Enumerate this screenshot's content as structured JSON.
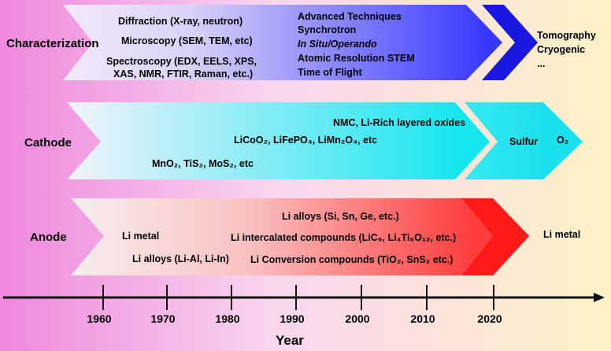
{
  "rows": {
    "characterization": {
      "label": "Characterization",
      "early": [
        "Diffraction (X-ray, neutron)",
        "Microscopy (SEM, TEM, etc)",
        "Spectroscopy (EDX, EELS, XPS,",
        "XAS, NMR, FTIR, Raman, etc.)"
      ],
      "advanced": [
        "Advanced Techniques",
        "Synchrotron",
        "In Situ/Operando",
        "Atomic Resolution STEM",
        "Time of Flight"
      ],
      "future": [
        "Tomography",
        "Cryogenic",
        "..."
      ]
    },
    "cathode": {
      "label": "Cathode",
      "item_1": "MnO₂, TiS₂, MoS₂, etc",
      "item_2": "LiCoO₂, LiFePO₄, LiMn₂O₄, etc",
      "item_3": "NMC, Li-Rich layered oxides",
      "future_1": "Sulfur",
      "future_2": "O₂"
    },
    "anode": {
      "label": "Anode",
      "item_1": "Li metal",
      "item_2": "Li  alloys (Li-Al, Li-In)",
      "item_3": "Li alloys (Si, Sn, Ge, etc.)",
      "item_4": "Li intercalated compounds (LiC₆, Li₄Ti₅O₁₂, etc.)",
      "item_5": "Li Conversion compounds (TiO₂, SnS₂ etc.)",
      "future": "Li metal"
    }
  },
  "axis": {
    "title": "Year",
    "ticks": [
      "1960",
      "1970",
      "1980",
      "1990",
      "2000",
      "2010",
      "2020"
    ]
  },
  "colors": {
    "bg_left": "#ee88dd",
    "bg_right": "#fdf2c6",
    "char_start": "#f2eaf8",
    "char_end": "#3838ff",
    "char_tip": "#1818e0",
    "cath_start": "#f4f2fa",
    "cath_end": "#18e6ef",
    "anode_start": "#f6eeee",
    "anode_end": "#ff3c3c",
    "anode_tip": "#ff1a1a"
  }
}
